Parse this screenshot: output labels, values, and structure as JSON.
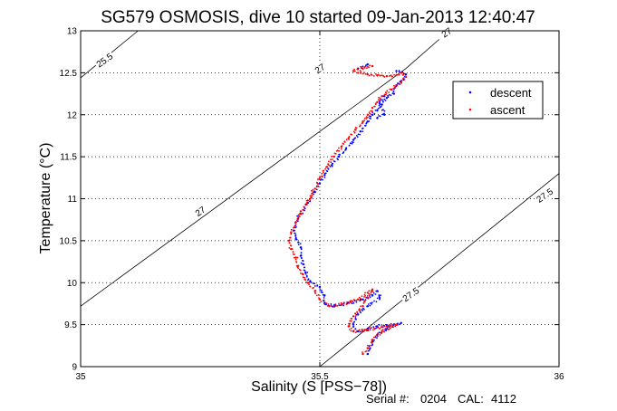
{
  "chart_data": {
    "type": "scatter",
    "title": "SG579 OSMOSIS, dive 10 started 09-Jan-2013 12:40:47",
    "xlabel": "Salinity (S [PSS−78])",
    "ylabel": "Temperature (°C)",
    "xlim": [
      35,
      36
    ],
    "ylim": [
      9,
      13
    ],
    "xticks": [
      35,
      35.5,
      36
    ],
    "xtick_labels": [
      "35",
      "35.5",
      "36"
    ],
    "yticks": [
      9,
      9.5,
      10,
      10.5,
      11,
      11.5,
      12,
      12.5,
      13
    ],
    "ytick_labels": [
      "9",
      "9.5",
      "10",
      "10.5",
      "11",
      "11.5",
      "12",
      "12.5",
      "13"
    ],
    "grid": true,
    "legend_position": "top-right",
    "isopycnals": [
      {
        "label": "25.5",
        "points": [
          [
            35.0,
            12.44
          ],
          [
            35.12,
            13.0
          ]
        ]
      },
      {
        "label": "27",
        "points": [
          [
            35.0,
            9.72
          ],
          [
            35.68,
            12.55
          ],
          [
            35.77,
            13.0
          ]
        ]
      },
      {
        "label": "27.5",
        "points": [
          [
            35.5,
            9.0
          ],
          [
            36.0,
            11.3
          ]
        ]
      }
    ],
    "isopycnal_label_positions": [
      {
        "text": "25.5",
        "x": 35.05,
        "y": 12.65
      },
      {
        "text": "27",
        "x": 35.5,
        "y": 12.55
      },
      {
        "text": "27",
        "x": 35.765,
        "y": 12.98
      },
      {
        "text": "27",
        "x": 35.25,
        "y": 10.85
      },
      {
        "text": "27.5",
        "x": 35.69,
        "y": 9.86
      },
      {
        "text": "27.5",
        "x": 35.97,
        "y": 11.04
      }
    ],
    "series": [
      {
        "name": "descent",
        "color": "#0000ff",
        "marker": "dot",
        "points": [
          [
            35.66,
            12.52
          ],
          [
            35.68,
            12.48
          ],
          [
            35.67,
            12.4
          ],
          [
            35.66,
            12.35
          ],
          [
            35.65,
            12.3
          ],
          [
            35.655,
            12.25
          ],
          [
            35.64,
            12.2
          ],
          [
            35.63,
            12.12
          ],
          [
            35.62,
            12.05
          ],
          [
            35.61,
            12.0
          ],
          [
            35.6,
            11.92
          ],
          [
            35.585,
            11.8
          ],
          [
            35.57,
            11.7
          ],
          [
            35.555,
            11.6
          ],
          [
            35.54,
            11.5
          ],
          [
            35.525,
            11.4
          ],
          [
            35.51,
            11.28
          ],
          [
            35.5,
            11.18
          ],
          [
            35.49,
            11.08
          ],
          [
            35.475,
            10.95
          ],
          [
            35.46,
            10.82
          ],
          [
            35.45,
            10.72
          ],
          [
            35.445,
            10.62
          ],
          [
            35.45,
            10.52
          ],
          [
            35.46,
            10.42
          ],
          [
            35.46,
            10.32
          ],
          [
            35.465,
            10.22
          ],
          [
            35.47,
            10.12
          ],
          [
            35.48,
            10.02
          ],
          [
            35.5,
            9.95
          ],
          [
            35.51,
            9.85
          ],
          [
            35.51,
            9.75
          ],
          [
            35.53,
            9.72
          ],
          [
            35.56,
            9.76
          ],
          [
            35.59,
            9.8
          ],
          [
            35.61,
            9.85
          ],
          [
            35.62,
            9.9
          ],
          [
            35.625,
            9.82
          ],
          [
            35.6,
            9.72
          ],
          [
            35.58,
            9.62
          ],
          [
            35.57,
            9.5
          ],
          [
            35.58,
            9.42
          ],
          [
            35.6,
            9.45
          ],
          [
            35.62,
            9.48
          ],
          [
            35.66,
            9.5
          ],
          [
            35.67,
            9.52
          ],
          [
            35.64,
            9.45
          ],
          [
            35.62,
            9.38
          ],
          [
            35.61,
            9.3
          ],
          [
            35.605,
            9.22
          ],
          [
            35.6,
            9.15
          ],
          [
            35.635,
            12.22
          ],
          [
            35.625,
            12.15
          ],
          [
            35.635,
            12.0
          ],
          [
            35.62,
            11.96
          ],
          [
            35.6,
            12.6
          ],
          [
            35.58,
            12.55
          ]
        ]
      },
      {
        "name": "ascent",
        "color": "#ff0000",
        "marker": "dot",
        "points": [
          [
            35.58,
            12.5
          ],
          [
            35.6,
            12.48
          ],
          [
            35.62,
            12.47
          ],
          [
            35.64,
            12.46
          ],
          [
            35.66,
            12.47
          ],
          [
            35.67,
            12.5
          ],
          [
            35.68,
            12.45
          ],
          [
            35.67,
            12.38
          ],
          [
            35.65,
            12.3
          ],
          [
            35.63,
            12.22
          ],
          [
            35.62,
            12.15
          ],
          [
            35.61,
            12.08
          ],
          [
            35.6,
            12.0
          ],
          [
            35.59,
            11.92
          ],
          [
            35.575,
            11.82
          ],
          [
            35.56,
            11.72
          ],
          [
            35.545,
            11.62
          ],
          [
            35.53,
            11.5
          ],
          [
            35.515,
            11.38
          ],
          [
            35.5,
            11.25
          ],
          [
            35.49,
            11.12
          ],
          [
            35.475,
            10.98
          ],
          [
            35.46,
            10.85
          ],
          [
            35.45,
            10.72
          ],
          [
            35.44,
            10.6
          ],
          [
            35.435,
            10.5
          ],
          [
            35.44,
            10.4
          ],
          [
            35.45,
            10.3
          ],
          [
            35.455,
            10.2
          ],
          [
            35.465,
            10.1
          ],
          [
            35.475,
            10.0
          ],
          [
            35.49,
            9.9
          ],
          [
            35.5,
            9.8
          ],
          [
            35.52,
            9.72
          ],
          [
            35.55,
            9.75
          ],
          [
            35.58,
            9.8
          ],
          [
            35.6,
            9.88
          ],
          [
            35.61,
            9.92
          ],
          [
            35.6,
            9.82
          ],
          [
            35.59,
            9.72
          ],
          [
            35.57,
            9.6
          ],
          [
            35.56,
            9.48
          ],
          [
            35.57,
            9.42
          ],
          [
            35.6,
            9.44
          ],
          [
            35.64,
            9.48
          ],
          [
            35.66,
            9.5
          ],
          [
            35.63,
            9.42
          ],
          [
            35.61,
            9.32
          ],
          [
            35.6,
            9.22
          ],
          [
            35.59,
            9.15
          ],
          [
            35.61,
            12.58
          ],
          [
            35.59,
            12.55
          ],
          [
            35.57,
            12.52
          ]
        ]
      }
    ]
  },
  "footer": {
    "serial_label": "Serial #:",
    "serial_value": "0204",
    "cal_label": "CAL:",
    "cal_value": "4112"
  }
}
